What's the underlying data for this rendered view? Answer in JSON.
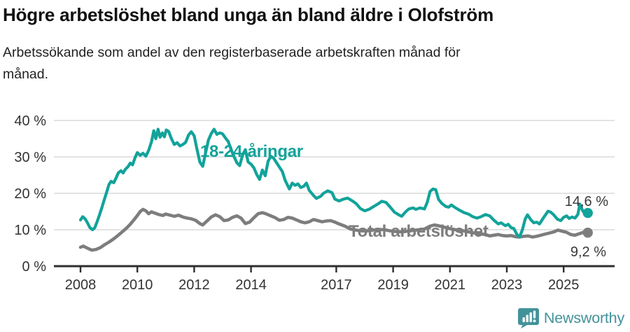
{
  "header": {
    "title": "Högre arbetslöshet bland unga än bland äldre i Olofström",
    "subtitle": "Arbetssökande som andel av den registerbaserade arbetskraften månad för månad."
  },
  "footer": {
    "brand": "Newsworthy",
    "brand_color": "#43929a",
    "logo_icon": "speech-bubble-bar-chart-exclamation"
  },
  "chart_data": {
    "type": "line",
    "title": "Högre arbetslöshet bland unga än bland äldre i Olofström",
    "subtitle": "Arbetssökande som andel av den registerbaserade arbetskraften månad för månad.",
    "grid": true,
    "legend_position": "inline-labels",
    "x_axis": {
      "unit": "year",
      "range": [
        2008.0,
        2025.95
      ],
      "ticks": [
        2008,
        2010,
        2012,
        2014,
        2017,
        2019,
        2021,
        2023,
        2025
      ],
      "tick_labels": [
        "2008",
        "2010",
        "2012",
        "2014",
        "2017",
        "2019",
        "2021",
        "2023",
        "2025"
      ]
    },
    "y_axis": {
      "unit": "percent",
      "range": [
        0,
        42
      ],
      "ticks": [
        0,
        10,
        20,
        30,
        40
      ],
      "tick_labels": [
        "0 %",
        "10 %",
        "20 %",
        "30 %",
        "40 %"
      ]
    },
    "series": [
      {
        "name": "18-24-åringar",
        "color": "#12a39a",
        "end_label": "14,6 %",
        "end_value": 14.6,
        "points": [
          [
            2008.0,
            12.7
          ],
          [
            2008.08,
            13.6
          ],
          [
            2008.17,
            12.9
          ],
          [
            2008.25,
            11.8
          ],
          [
            2008.33,
            10.6
          ],
          [
            2008.42,
            10.0
          ],
          [
            2008.5,
            10.5
          ],
          [
            2008.58,
            12.1
          ],
          [
            2008.67,
            14.1
          ],
          [
            2008.75,
            16.0
          ],
          [
            2008.83,
            18.1
          ],
          [
            2008.92,
            20.3
          ],
          [
            2009.0,
            22.4
          ],
          [
            2009.08,
            23.3
          ],
          [
            2009.17,
            22.9
          ],
          [
            2009.25,
            24.2
          ],
          [
            2009.33,
            25.6
          ],
          [
            2009.42,
            26.2
          ],
          [
            2009.5,
            25.6
          ],
          [
            2009.58,
            26.6
          ],
          [
            2009.67,
            27.3
          ],
          [
            2009.75,
            28.3
          ],
          [
            2009.83,
            27.8
          ],
          [
            2009.92,
            29.8
          ],
          [
            2010.0,
            31.2
          ],
          [
            2010.1,
            30.4
          ],
          [
            2010.2,
            31.0
          ],
          [
            2010.3,
            30.2
          ],
          [
            2010.4,
            31.8
          ],
          [
            2010.5,
            34.2
          ],
          [
            2010.58,
            37.2
          ],
          [
            2010.65,
            35.0
          ],
          [
            2010.73,
            37.6
          ],
          [
            2010.8,
            35.4
          ],
          [
            2010.88,
            36.6
          ],
          [
            2010.95,
            35.5
          ],
          [
            2011.02,
            37.4
          ],
          [
            2011.1,
            37.0
          ],
          [
            2011.2,
            35.0
          ],
          [
            2011.3,
            33.4
          ],
          [
            2011.4,
            33.9
          ],
          [
            2011.5,
            33.0
          ],
          [
            2011.6,
            33.4
          ],
          [
            2011.7,
            34.0
          ],
          [
            2011.8,
            36.0
          ],
          [
            2011.9,
            36.9
          ],
          [
            2012.0,
            35.8
          ],
          [
            2012.1,
            32.0
          ],
          [
            2012.2,
            28.6
          ],
          [
            2012.3,
            27.4
          ],
          [
            2012.4,
            31.0
          ],
          [
            2012.5,
            34.6
          ],
          [
            2012.6,
            36.4
          ],
          [
            2012.7,
            37.6
          ],
          [
            2012.8,
            36.2
          ],
          [
            2012.9,
            36.6
          ],
          [
            2013.0,
            36.3
          ],
          [
            2013.1,
            35.2
          ],
          [
            2013.2,
            34.2
          ],
          [
            2013.35,
            31.0
          ],
          [
            2013.5,
            28.4
          ],
          [
            2013.6,
            27.6
          ],
          [
            2013.7,
            30.4
          ],
          [
            2013.8,
            32.0
          ],
          [
            2013.9,
            28.6
          ],
          [
            2014.0,
            28.0
          ],
          [
            2014.1,
            27.0
          ],
          [
            2014.2,
            25.2
          ],
          [
            2014.3,
            23.8
          ],
          [
            2014.4,
            26.4
          ],
          [
            2014.5,
            24.8
          ],
          [
            2014.6,
            28.8
          ],
          [
            2014.7,
            30.2
          ],
          [
            2014.8,
            29.6
          ],
          [
            2014.9,
            28.4
          ],
          [
            2015.0,
            27.2
          ],
          [
            2015.1,
            26.0
          ],
          [
            2015.2,
            23.6
          ],
          [
            2015.35,
            21.2
          ],
          [
            2015.45,
            22.8
          ],
          [
            2015.55,
            22.2
          ],
          [
            2015.65,
            22.6
          ],
          [
            2015.75,
            21.6
          ],
          [
            2015.85,
            21.9
          ],
          [
            2015.95,
            22.8
          ],
          [
            2016.05,
            20.8
          ],
          [
            2016.2,
            19.4
          ],
          [
            2016.3,
            18.6
          ],
          [
            2016.45,
            19.2
          ],
          [
            2016.55,
            20.0
          ],
          [
            2016.7,
            20.7
          ],
          [
            2016.85,
            20.2
          ],
          [
            2016.95,
            18.4
          ],
          [
            2017.1,
            17.9
          ],
          [
            2017.25,
            18.4
          ],
          [
            2017.4,
            18.7
          ],
          [
            2017.55,
            18.0
          ],
          [
            2017.7,
            17.2
          ],
          [
            2017.85,
            15.8
          ],
          [
            2018.0,
            15.2
          ],
          [
            2018.15,
            15.6
          ],
          [
            2018.3,
            16.3
          ],
          [
            2018.45,
            17.0
          ],
          [
            2018.6,
            17.8
          ],
          [
            2018.75,
            17.5
          ],
          [
            2018.9,
            16.2
          ],
          [
            2019.05,
            14.8
          ],
          [
            2019.2,
            14.1
          ],
          [
            2019.3,
            13.7
          ],
          [
            2019.45,
            15.0
          ],
          [
            2019.55,
            15.7
          ],
          [
            2019.7,
            16.0
          ],
          [
            2019.8,
            15.6
          ],
          [
            2019.95,
            16.0
          ],
          [
            2020.1,
            15.7
          ],
          [
            2020.2,
            17.5
          ],
          [
            2020.3,
            20.5
          ],
          [
            2020.4,
            21.2
          ],
          [
            2020.5,
            21.0
          ],
          [
            2020.6,
            18.3
          ],
          [
            2020.72,
            17.2
          ],
          [
            2020.85,
            16.4
          ],
          [
            2020.95,
            16.2
          ],
          [
            2021.05,
            16.8
          ],
          [
            2021.2,
            16.0
          ],
          [
            2021.35,
            15.3
          ],
          [
            2021.5,
            14.7
          ],
          [
            2021.65,
            14.3
          ],
          [
            2021.8,
            13.6
          ],
          [
            2021.95,
            13.2
          ],
          [
            2022.1,
            13.6
          ],
          [
            2022.25,
            14.2
          ],
          [
            2022.4,
            13.8
          ],
          [
            2022.55,
            12.6
          ],
          [
            2022.7,
            11.6
          ],
          [
            2022.8,
            11.9
          ],
          [
            2022.95,
            11.1
          ],
          [
            2023.05,
            11.5
          ],
          [
            2023.15,
            10.6
          ],
          [
            2023.25,
            10.3
          ],
          [
            2023.35,
            8.8
          ],
          [
            2023.45,
            8.0
          ],
          [
            2023.55,
            10.0
          ],
          [
            2023.65,
            13.0
          ],
          [
            2023.73,
            14.1
          ],
          [
            2023.85,
            12.7
          ],
          [
            2023.95,
            11.9
          ],
          [
            2024.05,
            12.1
          ],
          [
            2024.15,
            11.6
          ],
          [
            2024.3,
            13.4
          ],
          [
            2024.45,
            15.1
          ],
          [
            2024.55,
            14.8
          ],
          [
            2024.65,
            14.1
          ],
          [
            2024.78,
            12.9
          ],
          [
            2024.9,
            12.5
          ],
          [
            2025.0,
            13.4
          ],
          [
            2025.1,
            13.8
          ],
          [
            2025.2,
            13.1
          ],
          [
            2025.3,
            13.5
          ],
          [
            2025.4,
            13.2
          ],
          [
            2025.5,
            14.2
          ],
          [
            2025.57,
            17.0
          ],
          [
            2025.67,
            15.2
          ],
          [
            2025.77,
            14.2
          ],
          [
            2025.85,
            14.6
          ]
        ]
      },
      {
        "name": "Total arbetslöshet",
        "color": "#7d7d7d",
        "end_label": "9,2 %",
        "end_value": 9.2,
        "points": [
          [
            2008.0,
            5.2
          ],
          [
            2008.1,
            5.5
          ],
          [
            2008.25,
            4.9
          ],
          [
            2008.4,
            4.4
          ],
          [
            2008.55,
            4.6
          ],
          [
            2008.7,
            5.1
          ],
          [
            2008.85,
            5.9
          ],
          [
            2009.0,
            6.6
          ],
          [
            2009.15,
            7.4
          ],
          [
            2009.3,
            8.3
          ],
          [
            2009.45,
            9.3
          ],
          [
            2009.6,
            10.3
          ],
          [
            2009.75,
            11.5
          ],
          [
            2009.9,
            12.9
          ],
          [
            2010.0,
            13.9
          ],
          [
            2010.1,
            15.0
          ],
          [
            2010.2,
            15.6
          ],
          [
            2010.3,
            15.2
          ],
          [
            2010.4,
            14.4
          ],
          [
            2010.5,
            14.9
          ],
          [
            2010.6,
            14.6
          ],
          [
            2010.75,
            14.2
          ],
          [
            2010.9,
            13.9
          ],
          [
            2011.0,
            14.3
          ],
          [
            2011.15,
            14.0
          ],
          [
            2011.3,
            13.7
          ],
          [
            2011.45,
            14.0
          ],
          [
            2011.6,
            13.5
          ],
          [
            2011.75,
            13.2
          ],
          [
            2011.9,
            13.0
          ],
          [
            2012.05,
            12.6
          ],
          [
            2012.2,
            11.7
          ],
          [
            2012.3,
            11.3
          ],
          [
            2012.45,
            12.4
          ],
          [
            2012.6,
            13.5
          ],
          [
            2012.75,
            14.1
          ],
          [
            2012.9,
            13.6
          ],
          [
            2013.05,
            12.5
          ],
          [
            2013.2,
            12.7
          ],
          [
            2013.35,
            13.4
          ],
          [
            2013.5,
            13.8
          ],
          [
            2013.65,
            13.2
          ],
          [
            2013.8,
            11.7
          ],
          [
            2013.95,
            12.1
          ],
          [
            2014.1,
            13.3
          ],
          [
            2014.25,
            14.4
          ],
          [
            2014.4,
            14.7
          ],
          [
            2014.55,
            14.3
          ],
          [
            2014.7,
            13.8
          ],
          [
            2014.85,
            13.3
          ],
          [
            2015.0,
            12.6
          ],
          [
            2015.15,
            12.8
          ],
          [
            2015.3,
            13.4
          ],
          [
            2015.45,
            13.2
          ],
          [
            2015.6,
            12.7
          ],
          [
            2015.75,
            12.2
          ],
          [
            2015.9,
            11.9
          ],
          [
            2016.05,
            12.2
          ],
          [
            2016.2,
            12.8
          ],
          [
            2016.35,
            12.5
          ],
          [
            2016.5,
            12.2
          ],
          [
            2016.65,
            12.4
          ],
          [
            2016.8,
            12.5
          ],
          [
            2016.95,
            12.1
          ],
          [
            2017.1,
            11.6
          ],
          [
            2017.3,
            11.0
          ],
          [
            2017.5,
            10.2
          ],
          [
            2017.7,
            9.9
          ],
          [
            2017.9,
            9.7
          ],
          [
            2018.1,
            9.7
          ],
          [
            2018.3,
            9.9
          ],
          [
            2018.5,
            10.1
          ],
          [
            2018.7,
            10.0
          ],
          [
            2018.9,
            9.7
          ],
          [
            2019.1,
            9.5
          ],
          [
            2019.3,
            9.4
          ],
          [
            2019.5,
            9.6
          ],
          [
            2019.7,
            9.8
          ],
          [
            2019.9,
            10.0
          ],
          [
            2020.1,
            10.2
          ],
          [
            2020.3,
            11.0
          ],
          [
            2020.45,
            11.3
          ],
          [
            2020.6,
            11.1
          ],
          [
            2020.8,
            10.7
          ],
          [
            2021.0,
            10.3
          ],
          [
            2021.2,
            10.0
          ],
          [
            2021.4,
            9.8
          ],
          [
            2021.6,
            9.5
          ],
          [
            2021.8,
            9.2
          ],
          [
            2021.95,
            9.0
          ],
          [
            2022.1,
            8.8
          ],
          [
            2022.25,
            8.7
          ],
          [
            2022.4,
            8.3
          ],
          [
            2022.55,
            8.5
          ],
          [
            2022.7,
            8.7
          ],
          [
            2022.85,
            8.4
          ],
          [
            2023.0,
            8.3
          ],
          [
            2023.15,
            8.4
          ],
          [
            2023.3,
            8.1
          ],
          [
            2023.45,
            8.0
          ],
          [
            2023.6,
            8.2
          ],
          [
            2023.75,
            8.3
          ],
          [
            2023.9,
            8.0
          ],
          [
            2024.05,
            8.2
          ],
          [
            2024.2,
            8.5
          ],
          [
            2024.35,
            8.8
          ],
          [
            2024.5,
            9.1
          ],
          [
            2024.65,
            9.4
          ],
          [
            2024.8,
            9.9
          ],
          [
            2024.95,
            9.6
          ],
          [
            2025.1,
            9.3
          ],
          [
            2025.25,
            8.7
          ],
          [
            2025.4,
            8.5
          ],
          [
            2025.55,
            8.9
          ],
          [
            2025.7,
            9.3
          ],
          [
            2025.85,
            9.2
          ]
        ]
      }
    ],
    "colors": {
      "grid": "#dadada",
      "axis": "#2e2e2e",
      "axis_text": "#333333",
      "end_label_text": "#3a3a3a"
    }
  }
}
